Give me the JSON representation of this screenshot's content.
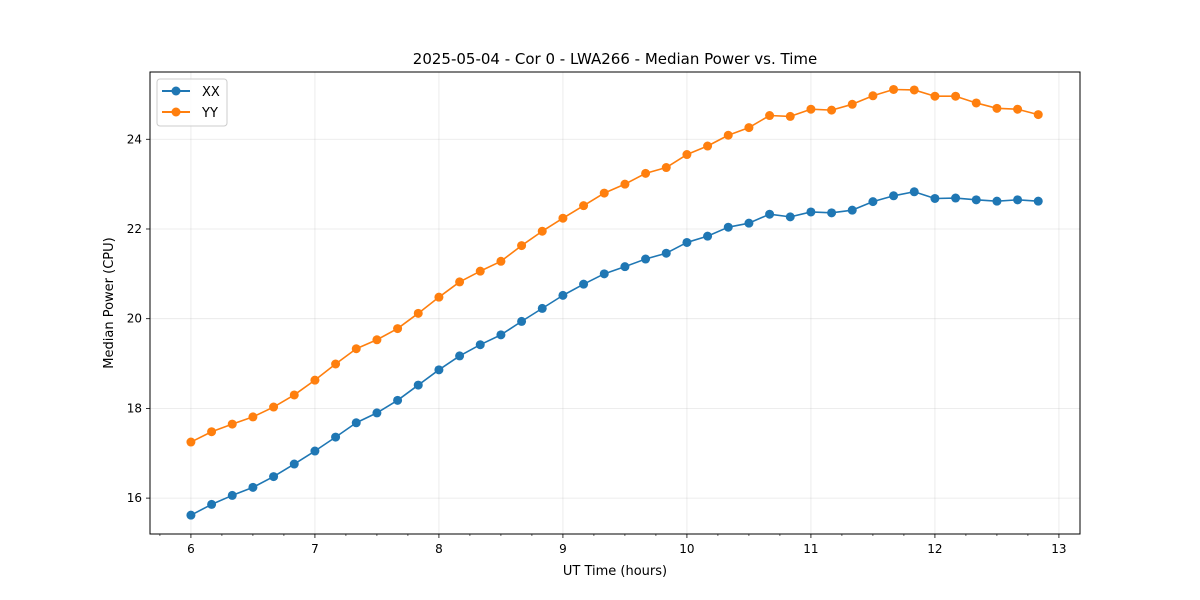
{
  "chart_data": {
    "type": "line",
    "title": "2025-05-04 - Cor 0 - LWA266 - Median Power vs. Time",
    "xlabel": "UT Time (hours)",
    "ylabel": "Median Power (CPU)",
    "xlim": [
      5.67,
      13.17
    ],
    "ylim": [
      15.2,
      25.5
    ],
    "xticks": [
      6,
      7,
      8,
      9,
      10,
      11,
      12,
      13
    ],
    "xtick_labels": [
      "6",
      "7",
      "8",
      "9",
      "10",
      "11",
      "12",
      "13"
    ],
    "xminor_step": 0.25,
    "yticks": [
      16,
      18,
      20,
      22,
      24
    ],
    "ytick_labels": [
      "16",
      "18",
      "20",
      "22",
      "24"
    ],
    "grid": true,
    "legend_position": "top-left",
    "x": [
      6.0,
      6.1667,
      6.3333,
      6.5,
      6.6667,
      6.8333,
      7.0,
      7.1667,
      7.3333,
      7.5,
      7.6667,
      7.8333,
      8.0,
      8.1667,
      8.3333,
      8.5,
      8.6667,
      8.8333,
      9.0,
      9.1667,
      9.3333,
      9.5,
      9.6667,
      9.8333,
      10.0,
      10.1667,
      10.3333,
      10.5,
      10.6667,
      10.8333,
      11.0,
      11.1667,
      11.3333,
      11.5,
      11.6667,
      11.8333,
      12.0,
      12.1667,
      12.3333,
      12.5,
      12.6667,
      12.8333
    ],
    "series": [
      {
        "name": "XX",
        "color": "#1f77b4",
        "values": [
          15.62,
          15.86,
          16.06,
          16.24,
          16.48,
          16.76,
          17.05,
          17.36,
          17.68,
          17.9,
          18.18,
          18.52,
          18.86,
          19.17,
          19.42,
          19.64,
          19.94,
          20.23,
          20.52,
          20.77,
          21.0,
          21.16,
          21.33,
          21.46,
          21.7,
          21.84,
          22.04,
          22.13,
          22.33,
          22.27,
          22.38,
          22.36,
          22.42,
          22.61,
          22.74,
          22.83,
          22.68,
          22.69,
          22.65,
          22.62,
          22.65,
          22.62
        ]
      },
      {
        "name": "YY",
        "color": "#ff7f0e",
        "values": [
          17.25,
          17.48,
          17.65,
          17.81,
          18.03,
          18.3,
          18.63,
          18.99,
          19.33,
          19.53,
          19.78,
          20.12,
          20.48,
          20.82,
          21.06,
          21.28,
          21.63,
          21.95,
          22.24,
          22.52,
          22.8,
          23.0,
          23.24,
          23.37,
          23.66,
          23.85,
          24.09,
          24.26,
          24.53,
          24.51,
          24.67,
          24.65,
          24.78,
          24.97,
          25.11,
          25.1,
          24.96,
          24.96,
          24.81,
          24.69,
          24.67,
          24.55
        ]
      }
    ]
  }
}
